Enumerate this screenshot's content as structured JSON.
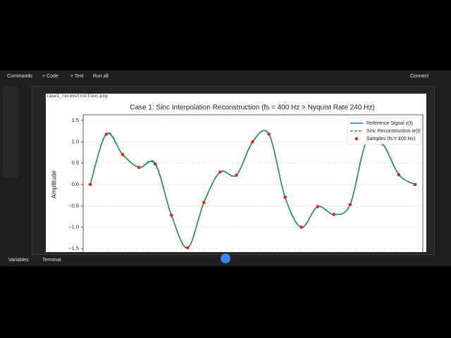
{
  "toolbar": {
    "commands": "Commands",
    "code": "+ Code",
    "text": "+ Text",
    "run_all": "Run all",
    "connect": "Connect"
  },
  "statusbar": {
    "variables": "Variables",
    "terminal": "Terminal"
  },
  "output": {
    "caption": "case1_reconstruction.png",
    "chart": {
      "type": "line",
      "title": "Case 1: Sinc Interpolation Reconstruction (fs = 400 Hz > Nyquist Rate 240 Hz)",
      "y_label": "Amplitude",
      "ylim": [
        -1.5,
        1.5
      ],
      "yticks": [
        {
          "value": 1.5,
          "label": "1.5"
        },
        {
          "value": 1.0,
          "label": "1.0"
        },
        {
          "value": 0.5,
          "label": "0.5"
        },
        {
          "value": 0.0,
          "label": "0.0"
        },
        {
          "value": -0.5,
          "label": "−0.5"
        },
        {
          "value": -1.0,
          "label": "−1.0"
        },
        {
          "value": -1.5,
          "label": "−1.5"
        }
      ],
      "grid": true,
      "series": [
        {
          "name": "Reference Signal x(t)",
          "color": "#1f77b4",
          "style": "solid",
          "values": [
            0,
            1.18,
            0.7,
            0.4,
            0.48,
            -0.72,
            -1.48,
            -0.42,
            0.29,
            0.22,
            1.0,
            1.18,
            -0.3,
            -1.0,
            -0.52,
            -0.7,
            -0.47,
            1.0,
            0.95,
            0.23,
            0.0
          ]
        },
        {
          "name": "Sinc Reconstruction xr(t)",
          "color": "#2ca02c",
          "style": "dashed",
          "values": [
            0,
            1.2,
            0.7,
            0.4,
            0.5,
            -0.72,
            -1.48,
            -0.42,
            0.29,
            0.22,
            1.0,
            1.18,
            -0.3,
            -1.0,
            -0.52,
            -0.7,
            -0.47,
            1.0,
            0.95,
            0.23,
            0.0
          ]
        },
        {
          "name": "Samples (fs = 400 Hz)",
          "color": "#d62728",
          "style": "points",
          "values": [
            0,
            1.18,
            0.7,
            0.4,
            0.48,
            -0.72,
            -1.48,
            -0.42,
            0.29,
            0.22,
            1.0,
            1.18,
            -0.3,
            -1.0,
            -0.52,
            -0.7,
            -0.47,
            1.0,
            0.95,
            0.23,
            0.0
          ]
        }
      ]
    }
  }
}
